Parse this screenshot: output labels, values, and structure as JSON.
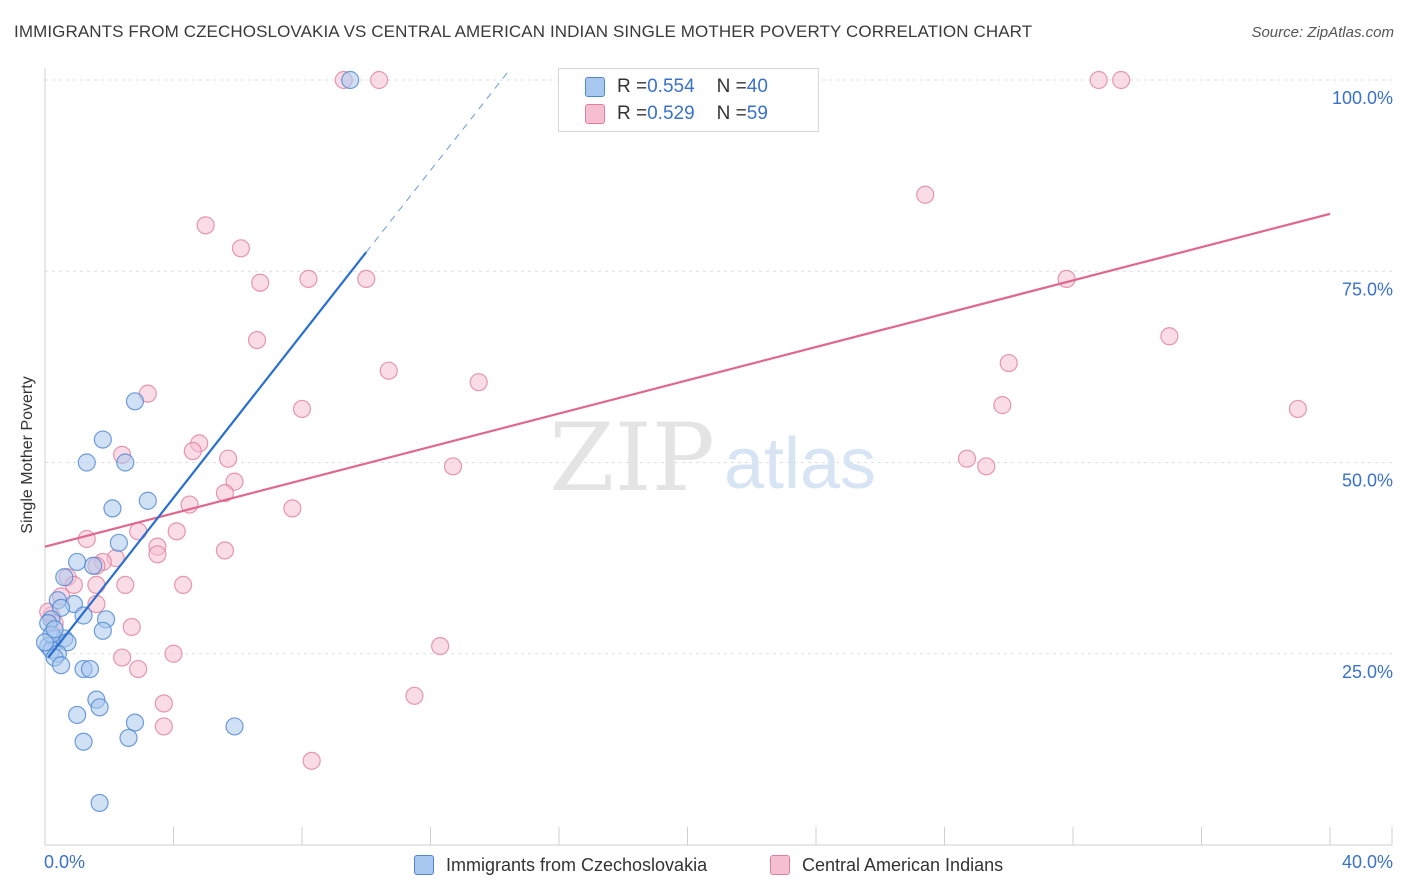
{
  "title": "IMMIGRANTS FROM CZECHOSLOVAKIA VS CENTRAL AMERICAN INDIAN SINGLE MOTHER POVERTY CORRELATION CHART",
  "source": "Source: ZipAtlas.com",
  "watermark": {
    "zip": "ZIP",
    "atlas": "atlas"
  },
  "legend": {
    "series1": {
      "r_label": "R = ",
      "r_value": "0.554",
      "n_label": "N = ",
      "n_value": "40"
    },
    "series2": {
      "r_label": "R = ",
      "r_value": "0.529",
      "n_label": "N = ",
      "n_value": "59"
    }
  },
  "bottom_legend": {
    "series1": "Immigrants from Czechoslovakia",
    "series2": "Central American Indians"
  },
  "colors": {
    "series1_fill": "#a9c8ef",
    "series1_stroke": "#4d86d1",
    "series1_line": "#2a6fcf",
    "series2_fill": "#f5bfd1",
    "series2_stroke": "#e07fa0",
    "series2_line": "#e06890",
    "tick_text": "#3a72c9",
    "grid": "#dedede"
  },
  "chart_data": {
    "type": "scatter",
    "title": "IMMIGRANTS FROM CZECHOSLOVAKIA VS CENTRAL AMERICAN INDIAN SINGLE MOTHER POVERTY CORRELATION CHART",
    "xlabel": "",
    "ylabel": "Single Mother Poverty",
    "xlim": [
      0,
      40
    ],
    "ylim": [
      0,
      100
    ],
    "x_tick_labels": {
      "left": "0.0%",
      "right": "40.0%"
    },
    "y_ticks": [
      {
        "value": 25,
        "label": "25.0%"
      },
      {
        "value": 50,
        "label": "50.0%"
      },
      {
        "value": 75,
        "label": "75.0%"
      },
      {
        "value": 100,
        "label": "100.0%"
      }
    ],
    "x_minor_ticks": [
      0,
      4,
      8,
      12,
      16,
      20,
      24,
      28,
      32,
      36,
      40
    ],
    "series": [
      {
        "name": "Immigrants from Czechoslovakia",
        "R": 0.554,
        "N": 40,
        "trend": {
          "x0": 0.1,
          "y0": 24.5,
          "x1": 10.0,
          "y1": 77.5,
          "dash_to_x": 14.4,
          "dash_to_y": 101
        },
        "points": [
          [
            9.5,
            100
          ],
          [
            2.8,
            58
          ],
          [
            1.8,
            53
          ],
          [
            1.3,
            50
          ],
          [
            2.5,
            50
          ],
          [
            3.2,
            45
          ],
          [
            2.1,
            44
          ],
          [
            2.3,
            39.5
          ],
          [
            1.0,
            37
          ],
          [
            1.5,
            36.5
          ],
          [
            0.6,
            35
          ],
          [
            0.4,
            32
          ],
          [
            0.9,
            31.5
          ],
          [
            0.5,
            31
          ],
          [
            1.2,
            30
          ],
          [
            1.9,
            29.5
          ],
          [
            0.2,
            29.5
          ],
          [
            0.1,
            29
          ],
          [
            1.8,
            28
          ],
          [
            0.3,
            27
          ],
          [
            0.6,
            27
          ],
          [
            0.7,
            26.5
          ],
          [
            0.1,
            26
          ],
          [
            0.2,
            25.5
          ],
          [
            0.4,
            25
          ],
          [
            0.3,
            24.5
          ],
          [
            0.5,
            23.5
          ],
          [
            1.2,
            23
          ],
          [
            1.4,
            23
          ],
          [
            1.6,
            19
          ],
          [
            1.7,
            18
          ],
          [
            1.0,
            17
          ],
          [
            2.8,
            16
          ],
          [
            2.6,
            14
          ],
          [
            1.2,
            13.5
          ],
          [
            5.9,
            15.5
          ],
          [
            1.7,
            5.5
          ],
          [
            0.2,
            27.5
          ],
          [
            0.0,
            26.5
          ],
          [
            0.3,
            28.2
          ]
        ]
      },
      {
        "name": "Central American Indians",
        "R": 0.529,
        "N": 59,
        "trend": {
          "x0": 0.0,
          "y0": 39.0,
          "x1": 40.0,
          "y1": 82.5
        },
        "points": [
          [
            9.3,
            100
          ],
          [
            10.4,
            100
          ],
          [
            32.8,
            100
          ],
          [
            33.5,
            100
          ],
          [
            27.4,
            85
          ],
          [
            5.0,
            81
          ],
          [
            6.1,
            78
          ],
          [
            6.7,
            73.5
          ],
          [
            8.2,
            74
          ],
          [
            10.0,
            74
          ],
          [
            31.8,
            74
          ],
          [
            35.0,
            66.5
          ],
          [
            6.6,
            66
          ],
          [
            30.0,
            63
          ],
          [
            10.7,
            62
          ],
          [
            13.5,
            60.5
          ],
          [
            3.2,
            59
          ],
          [
            8.0,
            57
          ],
          [
            29.8,
            57.5
          ],
          [
            39.0,
            57
          ],
          [
            4.8,
            52.5
          ],
          [
            4.6,
            51.5
          ],
          [
            2.4,
            51
          ],
          [
            5.7,
            50.5
          ],
          [
            12.7,
            49.5
          ],
          [
            28.7,
            50.5
          ],
          [
            29.3,
            49.5
          ],
          [
            5.9,
            47.5
          ],
          [
            5.6,
            46
          ],
          [
            4.5,
            44.5
          ],
          [
            7.7,
            44
          ],
          [
            2.9,
            41
          ],
          [
            4.1,
            41
          ],
          [
            1.3,
            40
          ],
          [
            3.5,
            39
          ],
          [
            3.5,
            38
          ],
          [
            5.6,
            38.5
          ],
          [
            2.2,
            37.5
          ],
          [
            1.8,
            37
          ],
          [
            1.6,
            36.5
          ],
          [
            0.7,
            35
          ],
          [
            0.9,
            34
          ],
          [
            1.6,
            34
          ],
          [
            2.5,
            34
          ],
          [
            4.3,
            34
          ],
          [
            0.5,
            32.5
          ],
          [
            1.6,
            31.5
          ],
          [
            0.2,
            30
          ],
          [
            0.3,
            29
          ],
          [
            2.7,
            28.5
          ],
          [
            12.3,
            26
          ],
          [
            4.0,
            25
          ],
          [
            2.4,
            24.5
          ],
          [
            2.9,
            23
          ],
          [
            3.7,
            18.5
          ],
          [
            3.7,
            15.5
          ],
          [
            11.5,
            19.5
          ],
          [
            8.3,
            11
          ],
          [
            0.1,
            30.5
          ]
        ]
      }
    ]
  }
}
